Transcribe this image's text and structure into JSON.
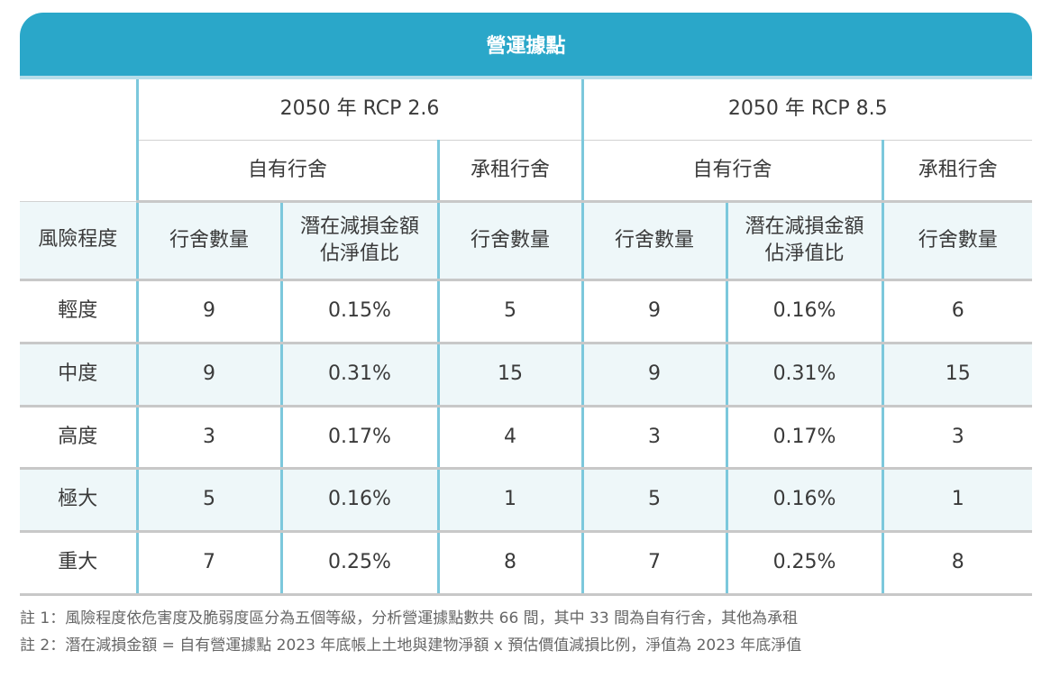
{
  "table": {
    "title": "營運據點",
    "scenarios": [
      "2050 年 RCP 2.6",
      "2050 年 RCP 8.5"
    ],
    "owned_label": "自有行舍",
    "leased_label": "承租行舍",
    "col_risk_level": "風險程度",
    "col_count": "行舍數量",
    "col_loss_line1": "潛在減損金額",
    "col_loss_line2": "佔淨值比",
    "rows": [
      {
        "level": "輕度",
        "rcp26_owned_count": "9",
        "rcp26_loss_ratio": "0.15%",
        "rcp26_leased_count": "5",
        "rcp85_owned_count": "9",
        "rcp85_loss_ratio": "0.16%",
        "rcp85_leased_count": "6"
      },
      {
        "level": "中度",
        "rcp26_owned_count": "9",
        "rcp26_loss_ratio": "0.31%",
        "rcp26_leased_count": "15",
        "rcp85_owned_count": "9",
        "rcp85_loss_ratio": "0.31%",
        "rcp85_leased_count": "15"
      },
      {
        "level": "高度",
        "rcp26_owned_count": "3",
        "rcp26_loss_ratio": "0.17%",
        "rcp26_leased_count": "4",
        "rcp85_owned_count": "3",
        "rcp85_loss_ratio": "0.17%",
        "rcp85_leased_count": "3"
      },
      {
        "level": "極大",
        "rcp26_owned_count": "5",
        "rcp26_loss_ratio": "0.16%",
        "rcp26_leased_count": "1",
        "rcp85_owned_count": "5",
        "rcp85_loss_ratio": "0.16%",
        "rcp85_leased_count": "1"
      },
      {
        "level": "重大",
        "rcp26_owned_count": "7",
        "rcp26_loss_ratio": "0.25%",
        "rcp26_leased_count": "8",
        "rcp85_owned_count": "7",
        "rcp85_loss_ratio": "0.25%",
        "rcp85_leased_count": "8"
      }
    ]
  },
  "notes": [
    "註 1：風險程度依危害度及脆弱度區分為五個等級，分析營運據點數共 66 間，其中 33 間為自有行舍，其他為承租",
    "註 2：潛在減損金額 = 自有營運據點 2023 年底帳上土地與建物淨額 x 預估價值減損比例，淨值為 2023 年底淨值"
  ],
  "colors": {
    "title_bar": "#2aa7c9",
    "divider": "#7cc8dc",
    "shaded_row": "#eef7f9"
  }
}
